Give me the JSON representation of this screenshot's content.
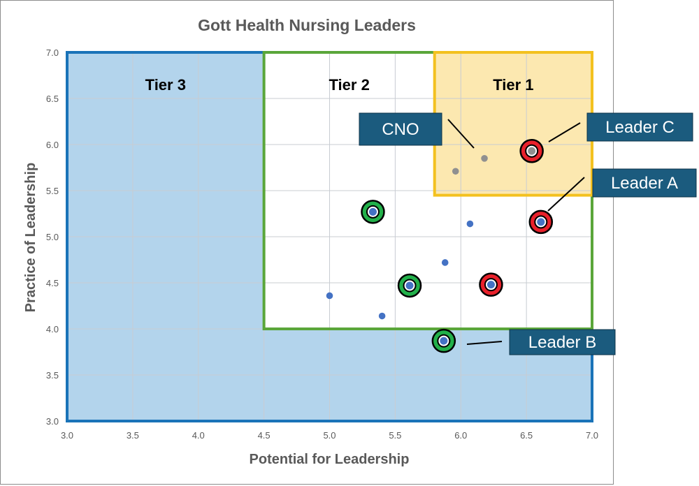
{
  "chart_data": {
    "type": "scatter",
    "title": "Gott Health Nursing Leaders",
    "xlabel": "Potential for Leadership",
    "ylabel": "Practice of Leadership",
    "xlim": [
      3.0,
      7.0
    ],
    "ylim": [
      3.0,
      7.0
    ],
    "xticks": [
      "3.0",
      "3.5",
      "4.0",
      "4.5",
      "5.0",
      "5.5",
      "6.0",
      "6.5",
      "7.0"
    ],
    "yticks": [
      "3.0",
      "3.5",
      "4.0",
      "4.5",
      "5.0",
      "5.5",
      "6.0",
      "6.5",
      "7.0"
    ],
    "grid": true,
    "tiers": [
      {
        "label": "Tier 3",
        "x_range": [
          3.0,
          7.0
        ],
        "y_range": [
          3.0,
          7.0
        ],
        "fill": "#b3d4ec",
        "border": "#1a73b8"
      },
      {
        "label": "Tier 2",
        "x_range": [
          4.5,
          7.0
        ],
        "y_range": [
          4.0,
          7.0
        ],
        "fill": "#ffffff",
        "border": "#5aa63a"
      },
      {
        "label": "Tier 1",
        "x_range": [
          5.8,
          7.0
        ],
        "y_range": [
          5.45,
          7.0
        ],
        "fill": "#fce8b0",
        "border": "#f3c11f"
      }
    ],
    "points": [
      {
        "x": 5.0,
        "y": 4.36,
        "color": "#4472c4",
        "ring": ""
      },
      {
        "x": 5.4,
        "y": 4.14,
        "color": "#4472c4",
        "ring": ""
      },
      {
        "x": 5.33,
        "y": 5.27,
        "color": "#4472c4",
        "ring": "green"
      },
      {
        "x": 5.61,
        "y": 4.47,
        "color": "#4472c4",
        "ring": "green"
      },
      {
        "x": 5.87,
        "y": 3.87,
        "color": "#4472c4",
        "ring": "green"
      },
      {
        "x": 5.88,
        "y": 4.72,
        "color": "#4472c4",
        "ring": ""
      },
      {
        "x": 6.07,
        "y": 5.14,
        "color": "#4472c4",
        "ring": ""
      },
      {
        "x": 6.23,
        "y": 4.48,
        "color": "#4472c4",
        "ring": "red"
      },
      {
        "x": 6.61,
        "y": 5.16,
        "color": "#4472c4",
        "ring": "red"
      },
      {
        "x": 5.96,
        "y": 5.71,
        "color": "#909090",
        "ring": ""
      },
      {
        "x": 6.18,
        "y": 5.85,
        "color": "#909090",
        "ring": ""
      },
      {
        "x": 6.54,
        "y": 5.93,
        "color": "#909090",
        "ring": "red"
      }
    ],
    "ring_colors": {
      "green": "#22b04a",
      "red": "#e8212b"
    },
    "callouts": [
      {
        "label": "CNO",
        "target": [
          6.18,
          5.85
        ]
      },
      {
        "label": "Leader C",
        "target": [
          6.54,
          5.93
        ]
      },
      {
        "label": "Leader A",
        "target": [
          6.61,
          5.16
        ]
      },
      {
        "label": "Leader B",
        "target": [
          5.87,
          3.87
        ]
      }
    ],
    "callout_color": "#1b5b7e"
  }
}
